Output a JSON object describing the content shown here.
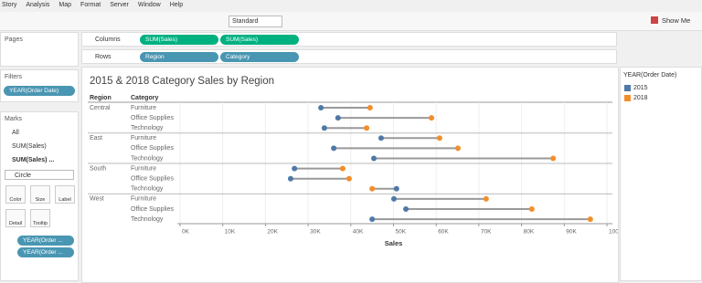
{
  "menu": [
    "Story",
    "Analysis",
    "Map",
    "Format",
    "Server",
    "Window",
    "Help"
  ],
  "toolbar": {
    "view_size": "Standard",
    "show_me": "Show Me"
  },
  "pages": {
    "title": "Pages"
  },
  "filters": {
    "title": "Filters",
    "pills": [
      "YEAR(Order Date)"
    ]
  },
  "marks": {
    "title": "Marks",
    "items": [
      "All",
      "SUM(Sales)",
      "SUM(Sales) ..."
    ],
    "mark_type": "Circle",
    "buttons": [
      "Color",
      "Size",
      "Label",
      "Detail",
      "Tooltip"
    ],
    "pills": [
      "YEAR(Order ...",
      "YEAR(Order ..."
    ]
  },
  "shelves": {
    "columns": {
      "label": "Columns",
      "pills": [
        "SUM(Sales)",
        "SUM(Sales)"
      ]
    },
    "rows": {
      "label": "Rows",
      "pills": [
        "Region",
        "Category"
      ]
    }
  },
  "chart_data": {
    "type": "dumbbell",
    "title": "2015 & 2018 Category Sales by Region",
    "row_headers": [
      "Region",
      "Category"
    ],
    "regions": [
      "Central",
      null,
      null,
      "East",
      null,
      null,
      "South",
      null,
      null,
      "West",
      null,
      null
    ],
    "categories": [
      "Furniture",
      "Office Supplies",
      "Technology",
      "Furniture",
      "Office Supplies",
      "Technology",
      "Furniture",
      "Office Supplies",
      "Technology",
      "Furniture",
      "Office Supplies",
      "Technology"
    ],
    "series": [
      {
        "name": "2015",
        "color": "#4e79a7",
        "values": [
          33000,
          37000,
          33800,
          47100,
          36000,
          45400,
          26800,
          25900,
          50700,
          50100,
          52900,
          45000
        ]
      },
      {
        "name": "2018",
        "color": "#f28e2b",
        "values": [
          44500,
          58900,
          43700,
          60800,
          65100,
          87400,
          38100,
          39600,
          45000,
          71700,
          82400,
          96100
        ]
      }
    ],
    "xlabel": "Sales",
    "xlim": [
      0,
      100000
    ],
    "xticks": [
      {
        "value": 0,
        "label": "0K"
      },
      {
        "value": 10000,
        "label": "10K"
      },
      {
        "value": 20000,
        "label": "20K"
      },
      {
        "value": 30000,
        "label": "30K"
      },
      {
        "value": 40000,
        "label": "40K"
      },
      {
        "value": 50000,
        "label": "50K"
      },
      {
        "value": 60000,
        "label": "60K"
      },
      {
        "value": 70000,
        "label": "70K"
      },
      {
        "value": 80000,
        "label": "80K"
      },
      {
        "value": 90000,
        "label": "90K"
      },
      {
        "value": 100000,
        "label": "100K"
      }
    ],
    "grid": true,
    "legend_title": "YEAR(Order Date)"
  }
}
